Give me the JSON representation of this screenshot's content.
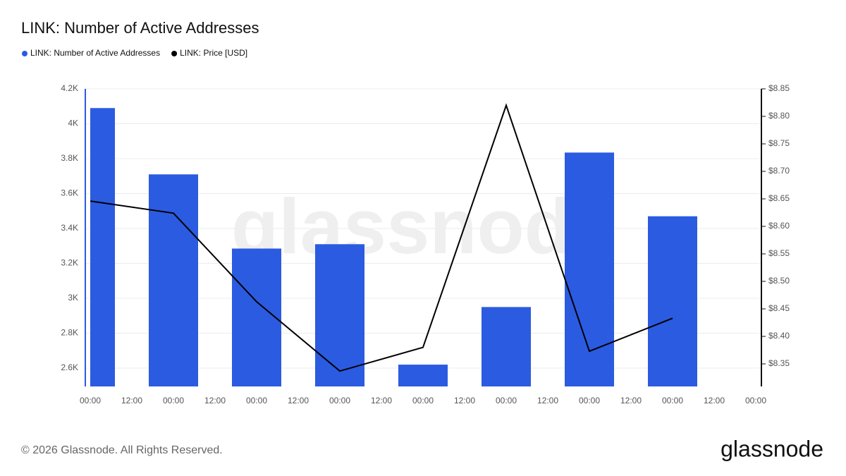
{
  "chart_data": {
    "type": "bar_line",
    "title": "LINK: Number of Active Addresses",
    "categories": [
      "00:00",
      "12:00",
      "00:00",
      "12:00",
      "00:00",
      "12:00",
      "00:00",
      "12:00",
      "00:00",
      "12:00",
      "00:00",
      "12:00",
      "00:00",
      "12:00",
      "00:00",
      "12:00",
      "00:00"
    ],
    "series": [
      {
        "name": "LINK: Number of Active Addresses",
        "color": "#2b5be0",
        "type": "bar",
        "values": [
          4090,
          null,
          3710,
          null,
          3285,
          null,
          3310,
          null,
          2620,
          null,
          2950,
          null,
          3835,
          null,
          3470,
          null,
          null
        ]
      },
      {
        "name": "LINK: Price [USD]",
        "color": "#000000",
        "type": "line",
        "axis": "y2",
        "values": [
          8.646,
          null,
          8.624,
          null,
          8.463,
          null,
          8.337,
          null,
          8.38,
          null,
          8.82,
          null,
          8.373,
          null,
          8.433,
          null,
          null
        ]
      }
    ],
    "ylim": [
      2495,
      4200
    ],
    "yticks": [
      {
        "value": 2600,
        "label": "2.6K"
      },
      {
        "value": 2800,
        "label": "2.8K"
      },
      {
        "value": 3000,
        "label": "3K"
      },
      {
        "value": 3200,
        "label": "3.2K"
      },
      {
        "value": 3400,
        "label": "3.4K"
      },
      {
        "value": 3600,
        "label": "3.6K"
      },
      {
        "value": 3800,
        "label": "3.8K"
      },
      {
        "value": 4000,
        "label": "4K"
      },
      {
        "value": 4200,
        "label": "4.2K"
      }
    ],
    "y2lim": [
      8.309,
      8.85
    ],
    "y2ticks": [
      {
        "value": 8.35,
        "label": "$8.35"
      },
      {
        "value": 8.4,
        "label": "$8.40"
      },
      {
        "value": 8.45,
        "label": "$8.45"
      },
      {
        "value": 8.5,
        "label": "$8.50"
      },
      {
        "value": 8.55,
        "label": "$8.55"
      },
      {
        "value": 8.6,
        "label": "$8.60"
      },
      {
        "value": 8.65,
        "label": "$8.65"
      },
      {
        "value": 8.7,
        "label": "$8.70"
      },
      {
        "value": 8.75,
        "label": "$8.75"
      },
      {
        "value": 8.8,
        "label": "$8.80"
      },
      {
        "value": 8.85,
        "label": "$8.85"
      }
    ],
    "grid": true,
    "legend": "top-left",
    "watermark": "glassnode"
  },
  "footer": {
    "copyright": "© 2026 Glassnode. All Rights Reserved.",
    "logo": "glassnode"
  }
}
